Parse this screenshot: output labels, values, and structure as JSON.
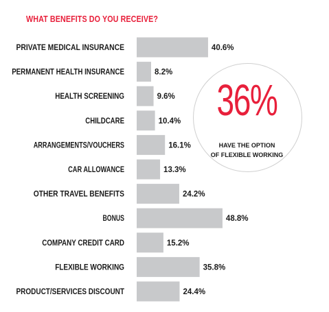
{
  "chart_data": {
    "type": "bar",
    "orientation": "horizontal",
    "title": "WHAT BENEFITS DO YOU RECEIVE?",
    "categories": [
      "PRIVATE MEDICAL INSURANCE",
      "PERMANENT HEALTH INSURANCE",
      "HEALTH SCREENING",
      "CHILDCARE",
      "ARRANGEMENTS/VOUCHERS",
      "CAR ALLOWANCE",
      "OTHER TRAVEL BENEFITS",
      "BONUS",
      "COMPANY CREDIT CARD",
      "FLEXIBLE WORKING",
      "PRODUCT/SERVICES DISCOUNT"
    ],
    "values": [
      40.6,
      8.2,
      9.6,
      10.4,
      16.1,
      13.3,
      24.2,
      48.8,
      15.2,
      35.8,
      24.4
    ],
    "value_labels": [
      "40.6%",
      "8.2%",
      "9.6%",
      "10.4%",
      "16.1%",
      "13.3%",
      "24.2%",
      "48.8%",
      "15.2%",
      "35.8%",
      "24.4%"
    ],
    "xlim": [
      0,
      50
    ],
    "grid": false,
    "colors": {
      "bar": "#c8c9cb",
      "accent": "#e8203b",
      "text": "#1a1a1a"
    }
  },
  "callout": {
    "big_text": "36%",
    "line1": "HAVE THE OPTION",
    "line2": "OF FLEXIBLE WORKING"
  }
}
